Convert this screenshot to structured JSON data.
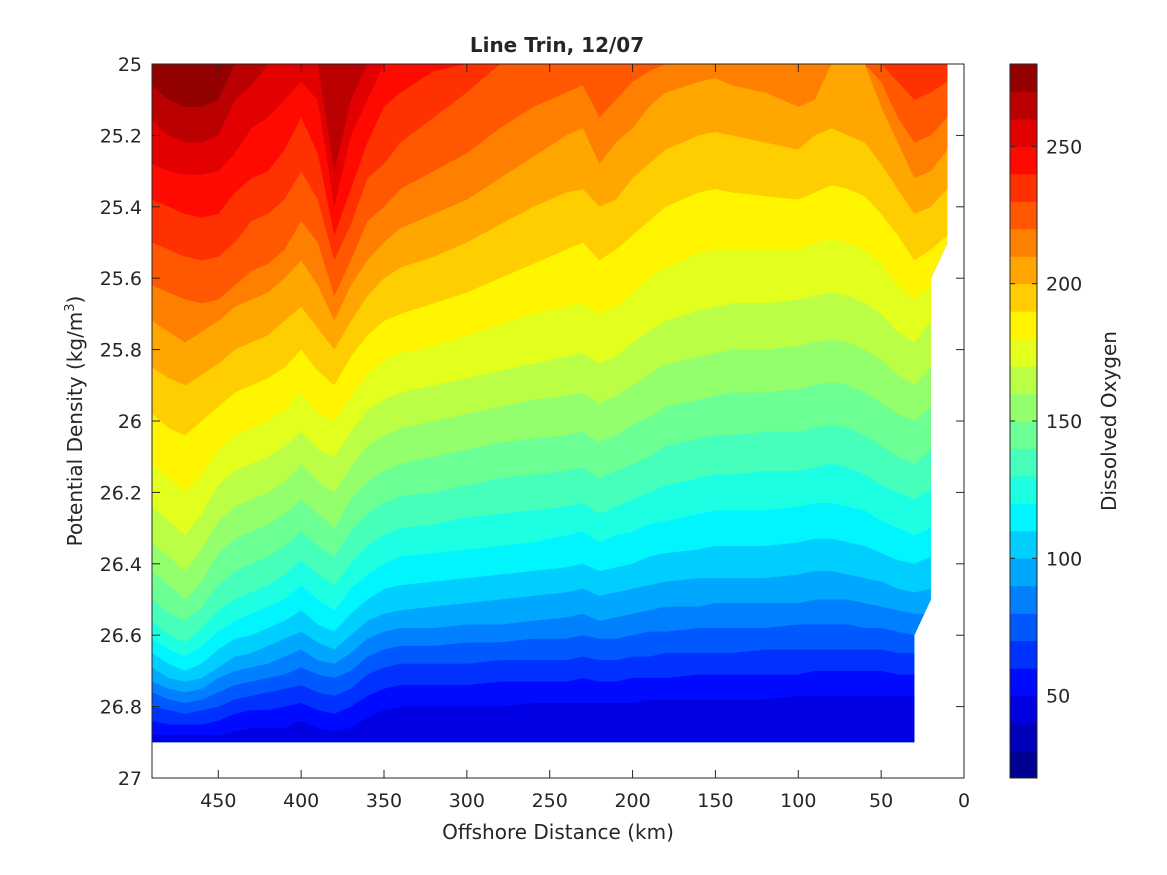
{
  "chart_data": {
    "type": "contour",
    "title": "Line Trin, 12/07",
    "xlabel": "Offshore Distance (km)",
    "ylabel_main": "Potential Density (kg/m",
    "ylabel_sup": "3",
    "ylabel_close": ")",
    "colorbar_label": "Dissolved Oxygen",
    "xlim": [
      490,
      0
    ],
    "x_reversed": true,
    "ylim": [
      25,
      27
    ],
    "y_reversed": true,
    "xticks": [
      450,
      400,
      350,
      300,
      250,
      200,
      150,
      100,
      50,
      0
    ],
    "yticks": [
      25,
      25.2,
      25.4,
      25.6,
      25.8,
      26,
      26.2,
      26.4,
      26.6,
      26.8,
      27
    ],
    "colorbar_range": [
      20,
      280
    ],
    "colorbar_ticks": [
      50,
      100,
      150,
      200,
      250
    ],
    "contour_interval": 10,
    "colormap": "jet",
    "data_extent": {
      "x_max": 490,
      "x_min_bottom": 30,
      "x_min_top": 10,
      "y_min": 25,
      "y_max": 26.9
    },
    "station_x": [
      490,
      480,
      470,
      460,
      450,
      440,
      430,
      420,
      410,
      400,
      390,
      380,
      370,
      360,
      350,
      340,
      320,
      300,
      280,
      260,
      240,
      230,
      220,
      210,
      200,
      190,
      180,
      160,
      150,
      140,
      120,
      100,
      90,
      80,
      70,
      60,
      50,
      40,
      30,
      20,
      10
    ],
    "isolines": [
      {
        "value": 270,
        "y": [
          25.06,
          25.1,
          25.12,
          25.12,
          25.1,
          25.0,
          25.0,
          25.0,
          25.0,
          25.0,
          25.0,
          25.0,
          25.0,
          25.0,
          25.0,
          25.0,
          25.0,
          25.0,
          25.0,
          25.0,
          25.0,
          25.0,
          25.0,
          25.0,
          25.0,
          25.0,
          25.0,
          25.0,
          25.0,
          25.0,
          25.0,
          25.0,
          25.0,
          25.0,
          25.0,
          25.0,
          25.0,
          25.0,
          25.0,
          25.0,
          25.0
        ]
      },
      {
        "value": 260,
        "y": [
          25.16,
          25.2,
          25.22,
          25.22,
          25.2,
          25.1,
          25.06,
          25.0,
          25.0,
          25.0,
          25.0,
          25.3,
          25.1,
          25.0,
          25.0,
          25.0,
          25.0,
          25.0,
          25.0,
          25.0,
          25.0,
          25.0,
          25.0,
          25.0,
          25.0,
          25.0,
          25.0,
          25.0,
          25.0,
          25.0,
          25.0,
          25.0,
          25.0,
          25.0,
          25.0,
          25.0,
          25.0,
          25.0,
          25.0,
          25.0,
          25.0
        ]
      },
      {
        "value": 250,
        "y": [
          25.28,
          25.3,
          25.31,
          25.31,
          25.3,
          25.25,
          25.18,
          25.15,
          25.1,
          25.05,
          25.1,
          25.4,
          25.2,
          25.1,
          25.0,
          25.0,
          25.0,
          25.0,
          25.0,
          25.0,
          25.0,
          25.0,
          25.0,
          25.0,
          25.0,
          25.0,
          25.0,
          25.0,
          25.0,
          25.0,
          25.0,
          25.0,
          25.0,
          25.0,
          25.0,
          25.0,
          25.0,
          25.0,
          25.0,
          25.0,
          25.0
        ]
      },
      {
        "value": 240,
        "y": [
          25.38,
          25.4,
          25.42,
          25.43,
          25.42,
          25.36,
          25.32,
          25.3,
          25.24,
          25.15,
          25.25,
          25.48,
          25.35,
          25.22,
          25.12,
          25.08,
          25.02,
          25.0,
          25.0,
          25.0,
          25.0,
          25.0,
          25.0,
          25.0,
          25.0,
          25.0,
          25.0,
          25.0,
          25.0,
          25.0,
          25.0,
          25.0,
          25.0,
          25.0,
          25.0,
          25.0,
          25.0,
          25.0,
          25.0,
          25.0,
          25.0
        ]
      },
      {
        "value": 230,
        "y": [
          25.5,
          25.52,
          25.54,
          25.55,
          25.54,
          25.5,
          25.44,
          25.42,
          25.38,
          25.3,
          25.38,
          25.55,
          25.45,
          25.32,
          25.28,
          25.22,
          25.15,
          25.08,
          25.0,
          25.0,
          25.0,
          25.0,
          25.0,
          25.0,
          25.0,
          25.0,
          25.0,
          25.0,
          25.0,
          25.0,
          25.0,
          25.0,
          25.0,
          25.0,
          25.0,
          25.0,
          25.0,
          25.05,
          25.1,
          25.08,
          25.05
        ]
      },
      {
        "value": 220,
        "y": [
          25.62,
          25.64,
          25.66,
          25.67,
          25.66,
          25.62,
          25.58,
          25.56,
          25.52,
          25.44,
          25.5,
          25.65,
          25.55,
          25.44,
          25.4,
          25.35,
          25.3,
          25.25,
          25.18,
          25.12,
          25.08,
          25.06,
          25.15,
          25.1,
          25.05,
          25.02,
          25.0,
          25.0,
          25.0,
          25.0,
          25.0,
          25.0,
          25.0,
          25.0,
          25.0,
          25.0,
          25.05,
          25.15,
          25.22,
          25.2,
          25.15
        ]
      },
      {
        "value": 210,
        "y": [
          25.72,
          25.75,
          25.78,
          25.75,
          25.72,
          25.68,
          25.66,
          25.64,
          25.6,
          25.55,
          25.62,
          25.72,
          25.62,
          25.55,
          25.5,
          25.46,
          25.42,
          25.38,
          25.32,
          25.26,
          25.2,
          25.18,
          25.28,
          25.22,
          25.18,
          25.12,
          25.08,
          25.05,
          25.04,
          25.06,
          25.08,
          25.12,
          25.1,
          25.0,
          25.0,
          25.0,
          25.12,
          25.22,
          25.32,
          25.3,
          25.24
        ]
      },
      {
        "value": 200,
        "y": [
          25.85,
          25.88,
          25.9,
          25.87,
          25.84,
          25.8,
          25.78,
          25.76,
          25.72,
          25.68,
          25.74,
          25.8,
          25.72,
          25.65,
          25.6,
          25.57,
          25.54,
          25.5,
          25.45,
          25.4,
          25.36,
          25.35,
          25.4,
          25.38,
          25.32,
          25.28,
          25.24,
          25.2,
          25.19,
          25.2,
          25.22,
          25.24,
          25.2,
          25.18,
          25.2,
          25.22,
          25.28,
          25.35,
          25.42,
          25.4,
          25.35
        ]
      },
      {
        "value": 190,
        "y": [
          25.98,
          26.02,
          26.04,
          26.0,
          25.96,
          25.92,
          25.9,
          25.88,
          25.85,
          25.8,
          25.86,
          25.9,
          25.82,
          25.76,
          25.72,
          25.7,
          25.67,
          25.64,
          25.6,
          25.56,
          25.52,
          25.5,
          25.55,
          25.52,
          25.48,
          25.44,
          25.4,
          25.36,
          25.35,
          25.36,
          25.37,
          25.38,
          25.36,
          25.34,
          25.35,
          25.37,
          25.42,
          25.48,
          25.55,
          25.52,
          25.48
        ]
      },
      {
        "value": 180,
        "y": [
          26.12,
          26.16,
          26.2,
          26.15,
          26.08,
          26.04,
          26.02,
          26.0,
          25.97,
          25.92,
          25.98,
          26.0,
          25.93,
          25.87,
          25.83,
          25.81,
          25.79,
          25.76,
          25.73,
          25.7,
          25.68,
          25.67,
          25.7,
          25.68,
          25.64,
          25.6,
          25.57,
          25.53,
          25.52,
          25.52,
          25.52,
          25.52,
          25.5,
          25.49,
          25.5,
          25.52,
          25.56,
          25.62,
          25.66,
          25.62,
          25.55
        ]
      },
      {
        "value": 170,
        "y": [
          26.24,
          26.28,
          26.32,
          26.26,
          26.18,
          26.14,
          26.12,
          26.1,
          26.07,
          26.03,
          26.08,
          26.1,
          26.03,
          25.97,
          25.94,
          25.92,
          25.9,
          25.88,
          25.86,
          25.84,
          25.82,
          25.81,
          25.84,
          25.82,
          25.78,
          25.75,
          25.72,
          25.69,
          25.68,
          25.67,
          25.67,
          25.66,
          25.65,
          25.64,
          25.65,
          25.67,
          25.7,
          25.75,
          25.78,
          25.72,
          25.65
        ]
      },
      {
        "value": 160,
        "y": [
          26.34,
          26.38,
          26.42,
          26.36,
          26.28,
          26.24,
          26.22,
          26.2,
          26.17,
          26.12,
          26.17,
          26.2,
          26.13,
          26.07,
          26.04,
          26.02,
          26.0,
          25.98,
          25.96,
          25.94,
          25.93,
          25.92,
          25.95,
          25.93,
          25.9,
          25.87,
          25.84,
          25.82,
          25.81,
          25.8,
          25.8,
          25.79,
          25.78,
          25.77,
          25.78,
          25.8,
          25.83,
          25.87,
          25.9,
          25.85,
          25.78
        ]
      },
      {
        "value": 150,
        "y": [
          26.42,
          26.46,
          26.5,
          26.45,
          26.37,
          26.33,
          26.31,
          26.29,
          26.26,
          26.22,
          26.26,
          26.3,
          26.22,
          26.17,
          26.14,
          26.12,
          26.1,
          26.08,
          26.06,
          26.05,
          26.04,
          26.03,
          26.06,
          26.04,
          26.01,
          25.99,
          25.96,
          25.94,
          25.93,
          25.92,
          25.92,
          25.91,
          25.9,
          25.89,
          25.9,
          25.92,
          25.95,
          25.98,
          26.0,
          25.96,
          25.9
        ]
      },
      {
        "value": 140,
        "y": [
          26.5,
          26.54,
          26.56,
          26.52,
          26.46,
          26.42,
          26.4,
          26.38,
          26.35,
          26.31,
          26.35,
          26.38,
          26.31,
          26.26,
          26.23,
          26.21,
          26.2,
          26.18,
          26.16,
          26.15,
          26.14,
          26.13,
          26.16,
          26.14,
          26.12,
          26.1,
          26.07,
          26.05,
          26.04,
          26.04,
          26.03,
          26.03,
          26.02,
          26.01,
          26.02,
          26.04,
          26.07,
          26.1,
          26.12,
          26.08,
          26.02
        ]
      },
      {
        "value": 130,
        "y": [
          26.56,
          26.6,
          26.62,
          26.58,
          26.53,
          26.5,
          26.48,
          26.46,
          26.43,
          26.39,
          26.43,
          26.46,
          26.4,
          26.35,
          26.32,
          26.3,
          26.29,
          26.27,
          26.26,
          26.25,
          26.24,
          26.23,
          26.26,
          26.24,
          26.22,
          26.2,
          26.18,
          26.16,
          26.15,
          26.15,
          26.14,
          26.14,
          26.13,
          26.12,
          26.13,
          26.15,
          26.18,
          26.2,
          26.22,
          26.19,
          26.14
        ]
      },
      {
        "value": 120,
        "y": [
          26.61,
          26.64,
          26.66,
          26.63,
          26.59,
          26.56,
          26.54,
          26.52,
          26.5,
          26.46,
          26.5,
          26.53,
          26.47,
          26.43,
          26.4,
          26.38,
          26.37,
          26.36,
          26.35,
          26.34,
          26.32,
          26.31,
          26.34,
          26.32,
          26.31,
          26.29,
          26.28,
          26.26,
          26.25,
          26.25,
          26.25,
          26.24,
          26.23,
          26.23,
          26.24,
          26.25,
          26.28,
          26.3,
          26.32,
          26.3,
          26.26
        ]
      },
      {
        "value": 110,
        "y": [
          26.65,
          26.68,
          26.7,
          26.68,
          26.64,
          26.61,
          26.6,
          26.58,
          26.56,
          26.53,
          26.57,
          26.59,
          26.54,
          26.5,
          26.47,
          26.46,
          26.45,
          26.44,
          26.43,
          26.42,
          26.41,
          26.4,
          26.42,
          26.41,
          26.4,
          26.38,
          26.37,
          26.36,
          26.35,
          26.35,
          26.35,
          26.34,
          26.33,
          26.33,
          26.34,
          26.35,
          26.37,
          26.39,
          26.4,
          26.38,
          26.36
        ]
      },
      {
        "value": 100,
        "y": [
          26.69,
          26.72,
          26.73,
          26.72,
          26.69,
          26.66,
          26.65,
          26.63,
          26.61,
          26.59,
          26.62,
          26.64,
          26.6,
          26.56,
          26.54,
          26.53,
          26.52,
          26.51,
          26.5,
          26.49,
          26.48,
          26.47,
          26.49,
          26.48,
          26.47,
          26.46,
          26.45,
          26.44,
          26.44,
          26.44,
          26.44,
          26.43,
          26.42,
          26.42,
          26.43,
          26.44,
          26.45,
          26.47,
          26.48,
          26.47,
          26.46
        ]
      },
      {
        "value": 90,
        "y": [
          26.73,
          26.75,
          26.76,
          26.75,
          26.72,
          26.7,
          26.69,
          26.68,
          26.66,
          26.64,
          26.67,
          26.68,
          26.65,
          26.61,
          26.59,
          26.58,
          26.58,
          26.57,
          26.57,
          26.56,
          26.55,
          26.54,
          26.56,
          26.55,
          26.54,
          26.53,
          26.52,
          26.52,
          26.51,
          26.51,
          26.51,
          26.51,
          26.5,
          26.5,
          26.5,
          26.51,
          26.52,
          26.53,
          26.54,
          26.54,
          26.53
        ]
      },
      {
        "value": 80,
        "y": [
          26.76,
          26.78,
          26.79,
          26.78,
          26.76,
          26.74,
          26.73,
          26.72,
          26.71,
          26.69,
          26.71,
          26.72,
          26.7,
          26.66,
          26.64,
          26.63,
          26.63,
          26.62,
          26.62,
          26.61,
          26.61,
          26.6,
          26.61,
          26.61,
          26.6,
          26.59,
          26.59,
          26.58,
          26.58,
          26.58,
          26.58,
          26.57,
          26.57,
          26.57,
          26.57,
          26.58,
          26.58,
          26.59,
          26.6,
          26.6,
          26.6
        ]
      },
      {
        "value": 70,
        "y": [
          26.8,
          26.81,
          26.82,
          26.81,
          26.8,
          26.78,
          26.77,
          26.76,
          26.75,
          26.74,
          26.76,
          26.77,
          26.75,
          26.71,
          26.69,
          26.68,
          26.68,
          26.68,
          26.67,
          26.67,
          26.67,
          26.66,
          26.67,
          26.67,
          26.66,
          26.66,
          26.65,
          26.65,
          26.65,
          26.65,
          26.64,
          26.64,
          26.64,
          26.64,
          26.64,
          26.64,
          26.64,
          26.65,
          26.65,
          26.65,
          26.65
        ]
      },
      {
        "value": 60,
        "y": [
          26.84,
          26.85,
          26.85,
          26.85,
          26.84,
          26.82,
          26.81,
          26.81,
          26.8,
          26.79,
          26.81,
          26.82,
          26.8,
          26.77,
          26.75,
          26.74,
          26.74,
          26.74,
          26.73,
          26.73,
          26.73,
          26.72,
          26.73,
          26.73,
          26.72,
          26.72,
          26.72,
          26.71,
          26.71,
          26.71,
          26.71,
          26.71,
          26.7,
          26.7,
          26.7,
          26.7,
          26.7,
          26.71,
          26.71,
          26.71,
          26.71
        ]
      },
      {
        "value": 50,
        "y": [
          26.88,
          26.88,
          26.88,
          26.88,
          26.88,
          26.87,
          26.86,
          26.86,
          26.86,
          26.84,
          26.86,
          26.87,
          26.86,
          26.83,
          26.81,
          26.8,
          26.8,
          26.8,
          26.8,
          26.79,
          26.79,
          26.79,
          26.79,
          26.79,
          26.79,
          26.78,
          26.78,
          26.78,
          26.78,
          26.78,
          26.78,
          26.77,
          26.77,
          26.77,
          26.77,
          26.77,
          26.77,
          26.77,
          26.77,
          26.77,
          26.77
        ]
      }
    ]
  }
}
